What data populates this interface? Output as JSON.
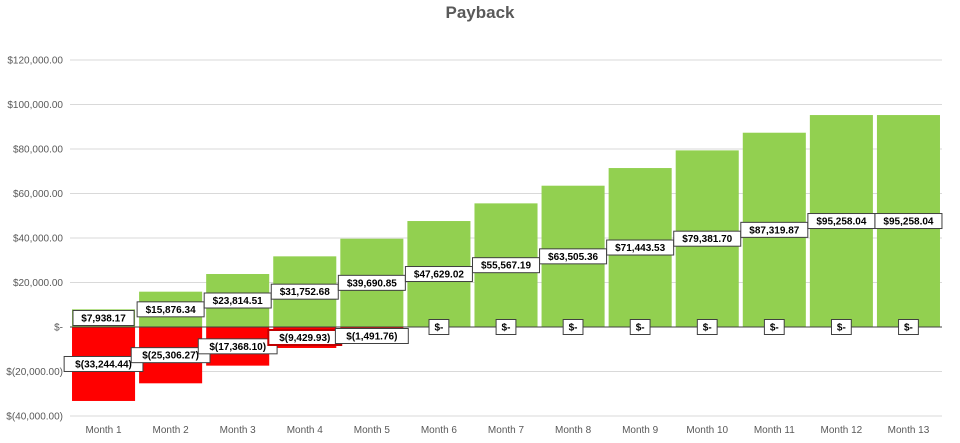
{
  "chart_data": {
    "type": "bar",
    "title": "Payback",
    "categories": [
      "Month 1",
      "Month 2",
      "Month 3",
      "Month 4",
      "Month 5",
      "Month 6",
      "Month 7",
      "Month 8",
      "Month 9",
      "Month 10",
      "Month 11",
      "Month 12",
      "Month 13"
    ],
    "series": [
      {
        "color": "#92d050",
        "values": [
          7938.17,
          15876.34,
          23814.51,
          31752.68,
          39690.85,
          47629.02,
          55567.19,
          63505.36,
          71443.53,
          79381.7,
          87319.87,
          95258.04,
          95258.04
        ],
        "labels": [
          "$7,938.17",
          "$15,876.34",
          "$23,814.51",
          "$31,752.68",
          "$39,690.85",
          "$47,629.02",
          "$55,567.19",
          "$63,505.36",
          "$71,443.53",
          "$79,381.70",
          "$87,319.87",
          "$95,258.04",
          "$95,258.04"
        ]
      },
      {
        "color": "#ff0000",
        "values": [
          -33244.44,
          -25306.27,
          -17368.1,
          -9429.93,
          -1491.76,
          0,
          0,
          0,
          0,
          0,
          0,
          0,
          0
        ],
        "labels": [
          "$(33,244.44)",
          "$(25,306.27)",
          "$(17,368.10)",
          "$(9,429.93)",
          "$(1,491.76)",
          "$-",
          "$-",
          "$-",
          "$-",
          "$-",
          "$-",
          "$-",
          "$-"
        ]
      }
    ],
    "ylim": [
      -40000,
      120000
    ],
    "yticks": [
      -40000,
      -20000,
      0,
      20000,
      40000,
      60000,
      80000,
      100000,
      120000
    ],
    "ytick_labels": [
      "$(40,000.00)",
      "$(20,000.00)",
      "$-",
      "$20,000.00",
      "$40,000.00",
      "$60,000.00",
      "$80,000.00",
      "$100,000.00",
      "$120,000.00"
    ],
    "grid": true,
    "legend": "none"
  }
}
